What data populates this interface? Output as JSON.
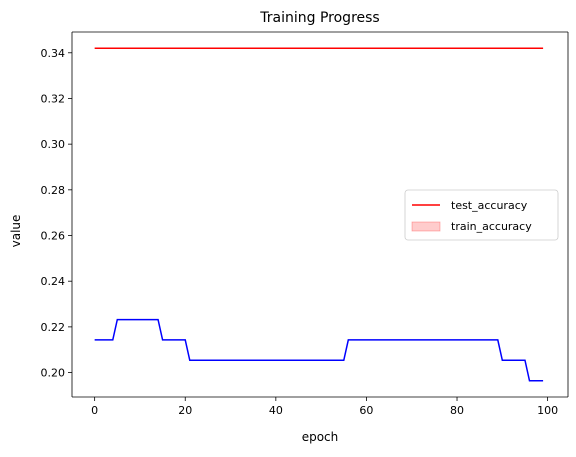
{
  "chart_data": {
    "type": "line",
    "title": "Training Progress",
    "xlabel": "epoch",
    "ylabel": "value",
    "xlim": [
      -5,
      104.5
    ],
    "ylim": [
      0.1893,
      0.3491
    ],
    "xticks": [
      0,
      20,
      40,
      60,
      80,
      100
    ],
    "yticks": [
      0.2,
      0.22,
      0.24,
      0.26,
      0.28,
      0.3,
      0.32,
      0.34
    ],
    "ytick_labels": [
      "0.20",
      "0.22",
      "0.24",
      "0.26",
      "0.28",
      "0.30",
      "0.32",
      "0.34"
    ],
    "grid": false,
    "legend_position": "center-right",
    "series": [
      {
        "name": "test_accuracy",
        "color": "#ff0000",
        "style": "line",
        "x": [
          0,
          99
        ],
        "y": [
          0.342,
          0.342
        ]
      },
      {
        "name": "train_accuracy",
        "color": "#ff0000",
        "fill_opacity": 0.2,
        "style": "band",
        "x": [],
        "y": []
      },
      {
        "color": "#0000ff",
        "style": "step-line",
        "x": [
          0,
          4,
          5,
          14,
          15,
          20,
          21,
          55,
          56,
          89,
          90,
          95,
          96,
          99
        ],
        "y": [
          0.2143,
          0.2143,
          0.2232,
          0.2232,
          0.2143,
          0.2143,
          0.2054,
          0.2054,
          0.2143,
          0.2143,
          0.2054,
          0.2054,
          0.1964,
          0.1964
        ]
      }
    ]
  }
}
